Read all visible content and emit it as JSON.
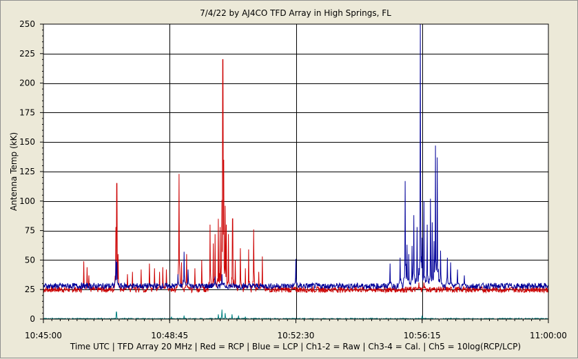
{
  "chart_data": {
    "type": "line",
    "title": "7/4/22  by  AJ4CO TFD Array  in  High Springs, FL",
    "ylabel": "Antenna Temp (kK)",
    "xlabel": "Time UTC | TFD Array 20 MHz | Red = RCP | Blue = LCP | Ch1-2 = Raw | Ch3-4 = Cal. | Ch5 = 10log(RCP/LCP)",
    "ylim": [
      0,
      250
    ],
    "yticks": [
      0,
      25,
      50,
      75,
      100,
      125,
      150,
      175,
      200,
      225,
      250
    ],
    "xlim_minutes": [
      0,
      15
    ],
    "xticks": [
      {
        "t": 0,
        "label": "10:45:00"
      },
      {
        "t": 3.75,
        "label": "10:48:45"
      },
      {
        "t": 7.5,
        "label": "10:52:30"
      },
      {
        "t": 11.25,
        "label": "10:56:15"
      },
      {
        "t": 15,
        "label": "11:00:00"
      }
    ],
    "grid": true,
    "background_color": "#ffffff",
    "series": [
      {
        "name": "RCP",
        "color": "#cc0000",
        "baseline": 25,
        "noise": 5,
        "peaks": [
          [
            1.2,
            49
          ],
          [
            1.3,
            44
          ],
          [
            1.35,
            37
          ],
          [
            2.15,
            78
          ],
          [
            2.18,
            115
          ],
          [
            2.22,
            55
          ],
          [
            2.5,
            38
          ],
          [
            2.65,
            40
          ],
          [
            2.9,
            42
          ],
          [
            3.15,
            47
          ],
          [
            3.3,
            43
          ],
          [
            3.45,
            40
          ],
          [
            3.55,
            44
          ],
          [
            3.65,
            42
          ],
          [
            4.03,
            123
          ],
          [
            4.1,
            48
          ],
          [
            4.25,
            55
          ],
          [
            4.5,
            43
          ],
          [
            4.7,
            50
          ],
          [
            4.95,
            80
          ],
          [
            5.05,
            64
          ],
          [
            5.1,
            72
          ],
          [
            5.2,
            85
          ],
          [
            5.25,
            78
          ],
          [
            5.3,
            101
          ],
          [
            5.33,
            220
          ],
          [
            5.36,
            135
          ],
          [
            5.4,
            96
          ],
          [
            5.43,
            80
          ],
          [
            5.5,
            72
          ],
          [
            5.62,
            85
          ],
          [
            5.7,
            50
          ],
          [
            5.85,
            60
          ],
          [
            6.0,
            43
          ],
          [
            6.1,
            59
          ],
          [
            6.25,
            76
          ],
          [
            6.4,
            40
          ],
          [
            6.5,
            53
          ],
          [
            11.15,
            31
          ],
          [
            11.3,
            31
          ]
        ]
      },
      {
        "name": "LCP",
        "color": "#000099",
        "baseline": 28,
        "noise": 5,
        "peaks": [
          [
            2.15,
            50
          ],
          [
            2.18,
            48
          ],
          [
            4.0,
            38
          ],
          [
            4.18,
            57
          ],
          [
            4.3,
            42
          ],
          [
            5.1,
            36
          ],
          [
            5.3,
            38
          ],
          [
            7.5,
            51
          ],
          [
            10.3,
            47
          ],
          [
            10.6,
            52
          ],
          [
            10.75,
            117
          ],
          [
            10.8,
            63
          ],
          [
            10.85,
            55
          ],
          [
            10.95,
            62
          ],
          [
            11.0,
            88
          ],
          [
            11.1,
            78
          ],
          [
            11.2,
            250
          ],
          [
            11.25,
            69
          ],
          [
            11.3,
            100
          ],
          [
            11.4,
            80
          ],
          [
            11.5,
            102
          ],
          [
            11.55,
            82
          ],
          [
            11.6,
            66
          ],
          [
            11.65,
            147
          ],
          [
            11.7,
            137
          ],
          [
            11.8,
            58
          ],
          [
            12.0,
            52
          ],
          [
            12.1,
            48
          ],
          [
            12.3,
            42
          ],
          [
            12.5,
            37
          ]
        ]
      },
      {
        "name": "Ch5",
        "color": "#008080",
        "baseline": 0,
        "noise": 1,
        "peaks": [
          [
            2.17,
            6
          ],
          [
            3.8,
            2
          ],
          [
            4.18,
            3
          ],
          [
            5.2,
            4
          ],
          [
            5.3,
            8
          ],
          [
            5.4,
            5
          ],
          [
            5.6,
            4
          ],
          [
            5.8,
            3
          ],
          [
            6.0,
            2
          ],
          [
            11.25,
            3
          ]
        ]
      }
    ]
  }
}
